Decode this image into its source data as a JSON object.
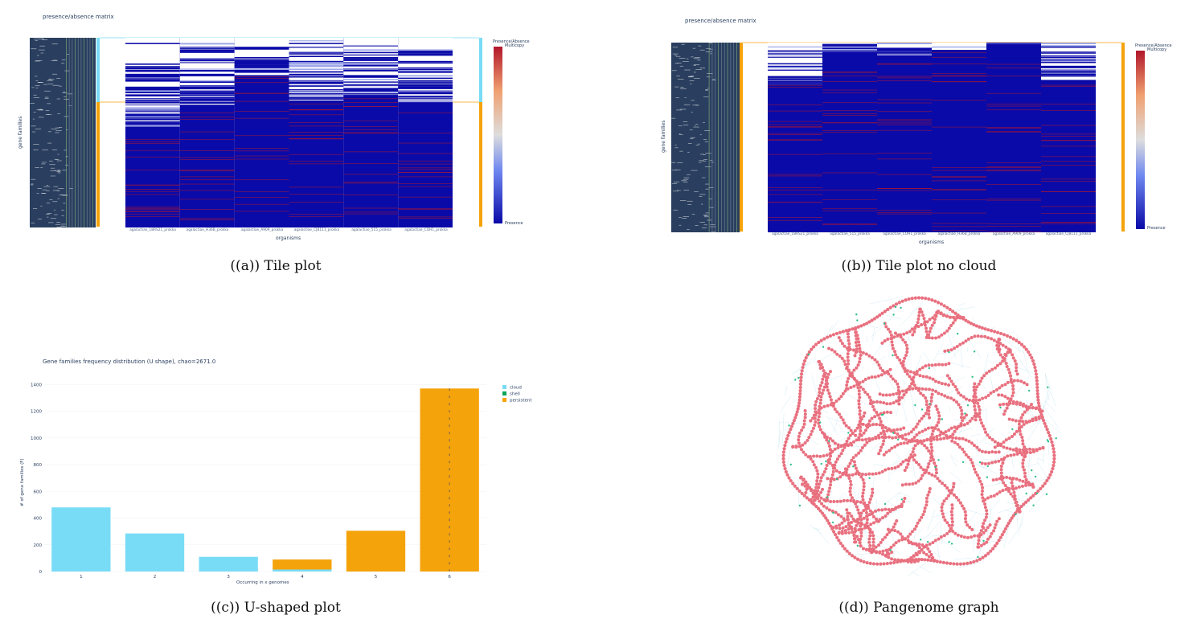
{
  "panels": {
    "a": {
      "title": "presence/absence matrix",
      "caption": "((a)) Tile plot"
    },
    "b": {
      "title": "presence/absence matrix",
      "caption": "((b)) Tile plot no cloud"
    },
    "c": {
      "caption": "((c)) U-shaped plot"
    },
    "d": {
      "caption": "((d)) Pangenome graph"
    }
  },
  "colors": {
    "presence": "#0a0aa8",
    "multicopy": "#b2182b",
    "cloud": "#79dcf7",
    "shell": "#00a65a",
    "persistent": "#f5a30b",
    "node": "#e8707f",
    "shell_node": "#2fbf8a",
    "cloud_edge": "#9fd6e8",
    "axis_text": "#2a3f5f"
  },
  "chart_data": [
    {
      "type": "heatmap",
      "title": "presence/absence matrix",
      "xlabel": "organisms",
      "ylabel": "gene families",
      "columns": [
        "agalactiae_18RS21_prokka",
        "agalactiae_H36B_prokka",
        "agalactiae_A909_prokka",
        "agalactiae_CJB111_prokka",
        "agalactiae_515_prokka",
        "agalactiae_COH1_prokka"
      ],
      "colorbar": {
        "title": "Presence/Absence",
        "top_label": "Multicopy",
        "bottom_label": "Presence"
      },
      "partition_bar": [
        "cloud",
        "persistent"
      ]
    },
    {
      "type": "heatmap",
      "title": "presence/absence matrix",
      "xlabel": "organisms",
      "ylabel": "gene families",
      "columns": [
        "agalactiae_18RS21_prokka",
        "agalactiae_515_prokka",
        "agalactiae_COH1_prokka",
        "agalactiae_H36B_prokka",
        "agalactiae_A909_prokka",
        "agalactiae_CJB111_prokka"
      ],
      "colorbar": {
        "title": "Presence/Absence",
        "top_label": "Multicopy",
        "bottom_label": "Presence"
      },
      "partition_bar": [
        "persistent"
      ]
    },
    {
      "type": "bar",
      "title": "Gene families frequency distribution (U shape), chao=2671.0",
      "xlabel": "Occurring in x genomes",
      "ylabel": "# of gene families (F)",
      "categories": [
        "1",
        "2",
        "3",
        "4",
        "5",
        "6"
      ],
      "series": [
        {
          "name": "cloud",
          "values": [
            480,
            285,
            110,
            15,
            0,
            0
          ]
        },
        {
          "name": "shell",
          "values": [
            0,
            0,
            0,
            0,
            0,
            0
          ]
        },
        {
          "name": "persistent",
          "values": [
            0,
            0,
            0,
            75,
            305,
            1370
          ]
        }
      ],
      "yticks": [
        0,
        200,
        400,
        600,
        800,
        1000,
        1200,
        1400
      ],
      "ylim": [
        0,
        1420
      ],
      "legend_position": "top-right"
    }
  ]
}
